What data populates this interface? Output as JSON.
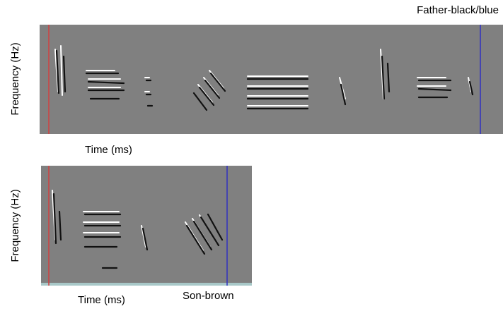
{
  "panels": [
    {
      "label": "Father-black/blue",
      "x_label": "Time (ms)",
      "y_label": "Frequency (Hz)"
    },
    {
      "label": "Son-brown",
      "x_label": "Time (ms)",
      "y_label": "Frequency (Hz)"
    }
  ]
}
